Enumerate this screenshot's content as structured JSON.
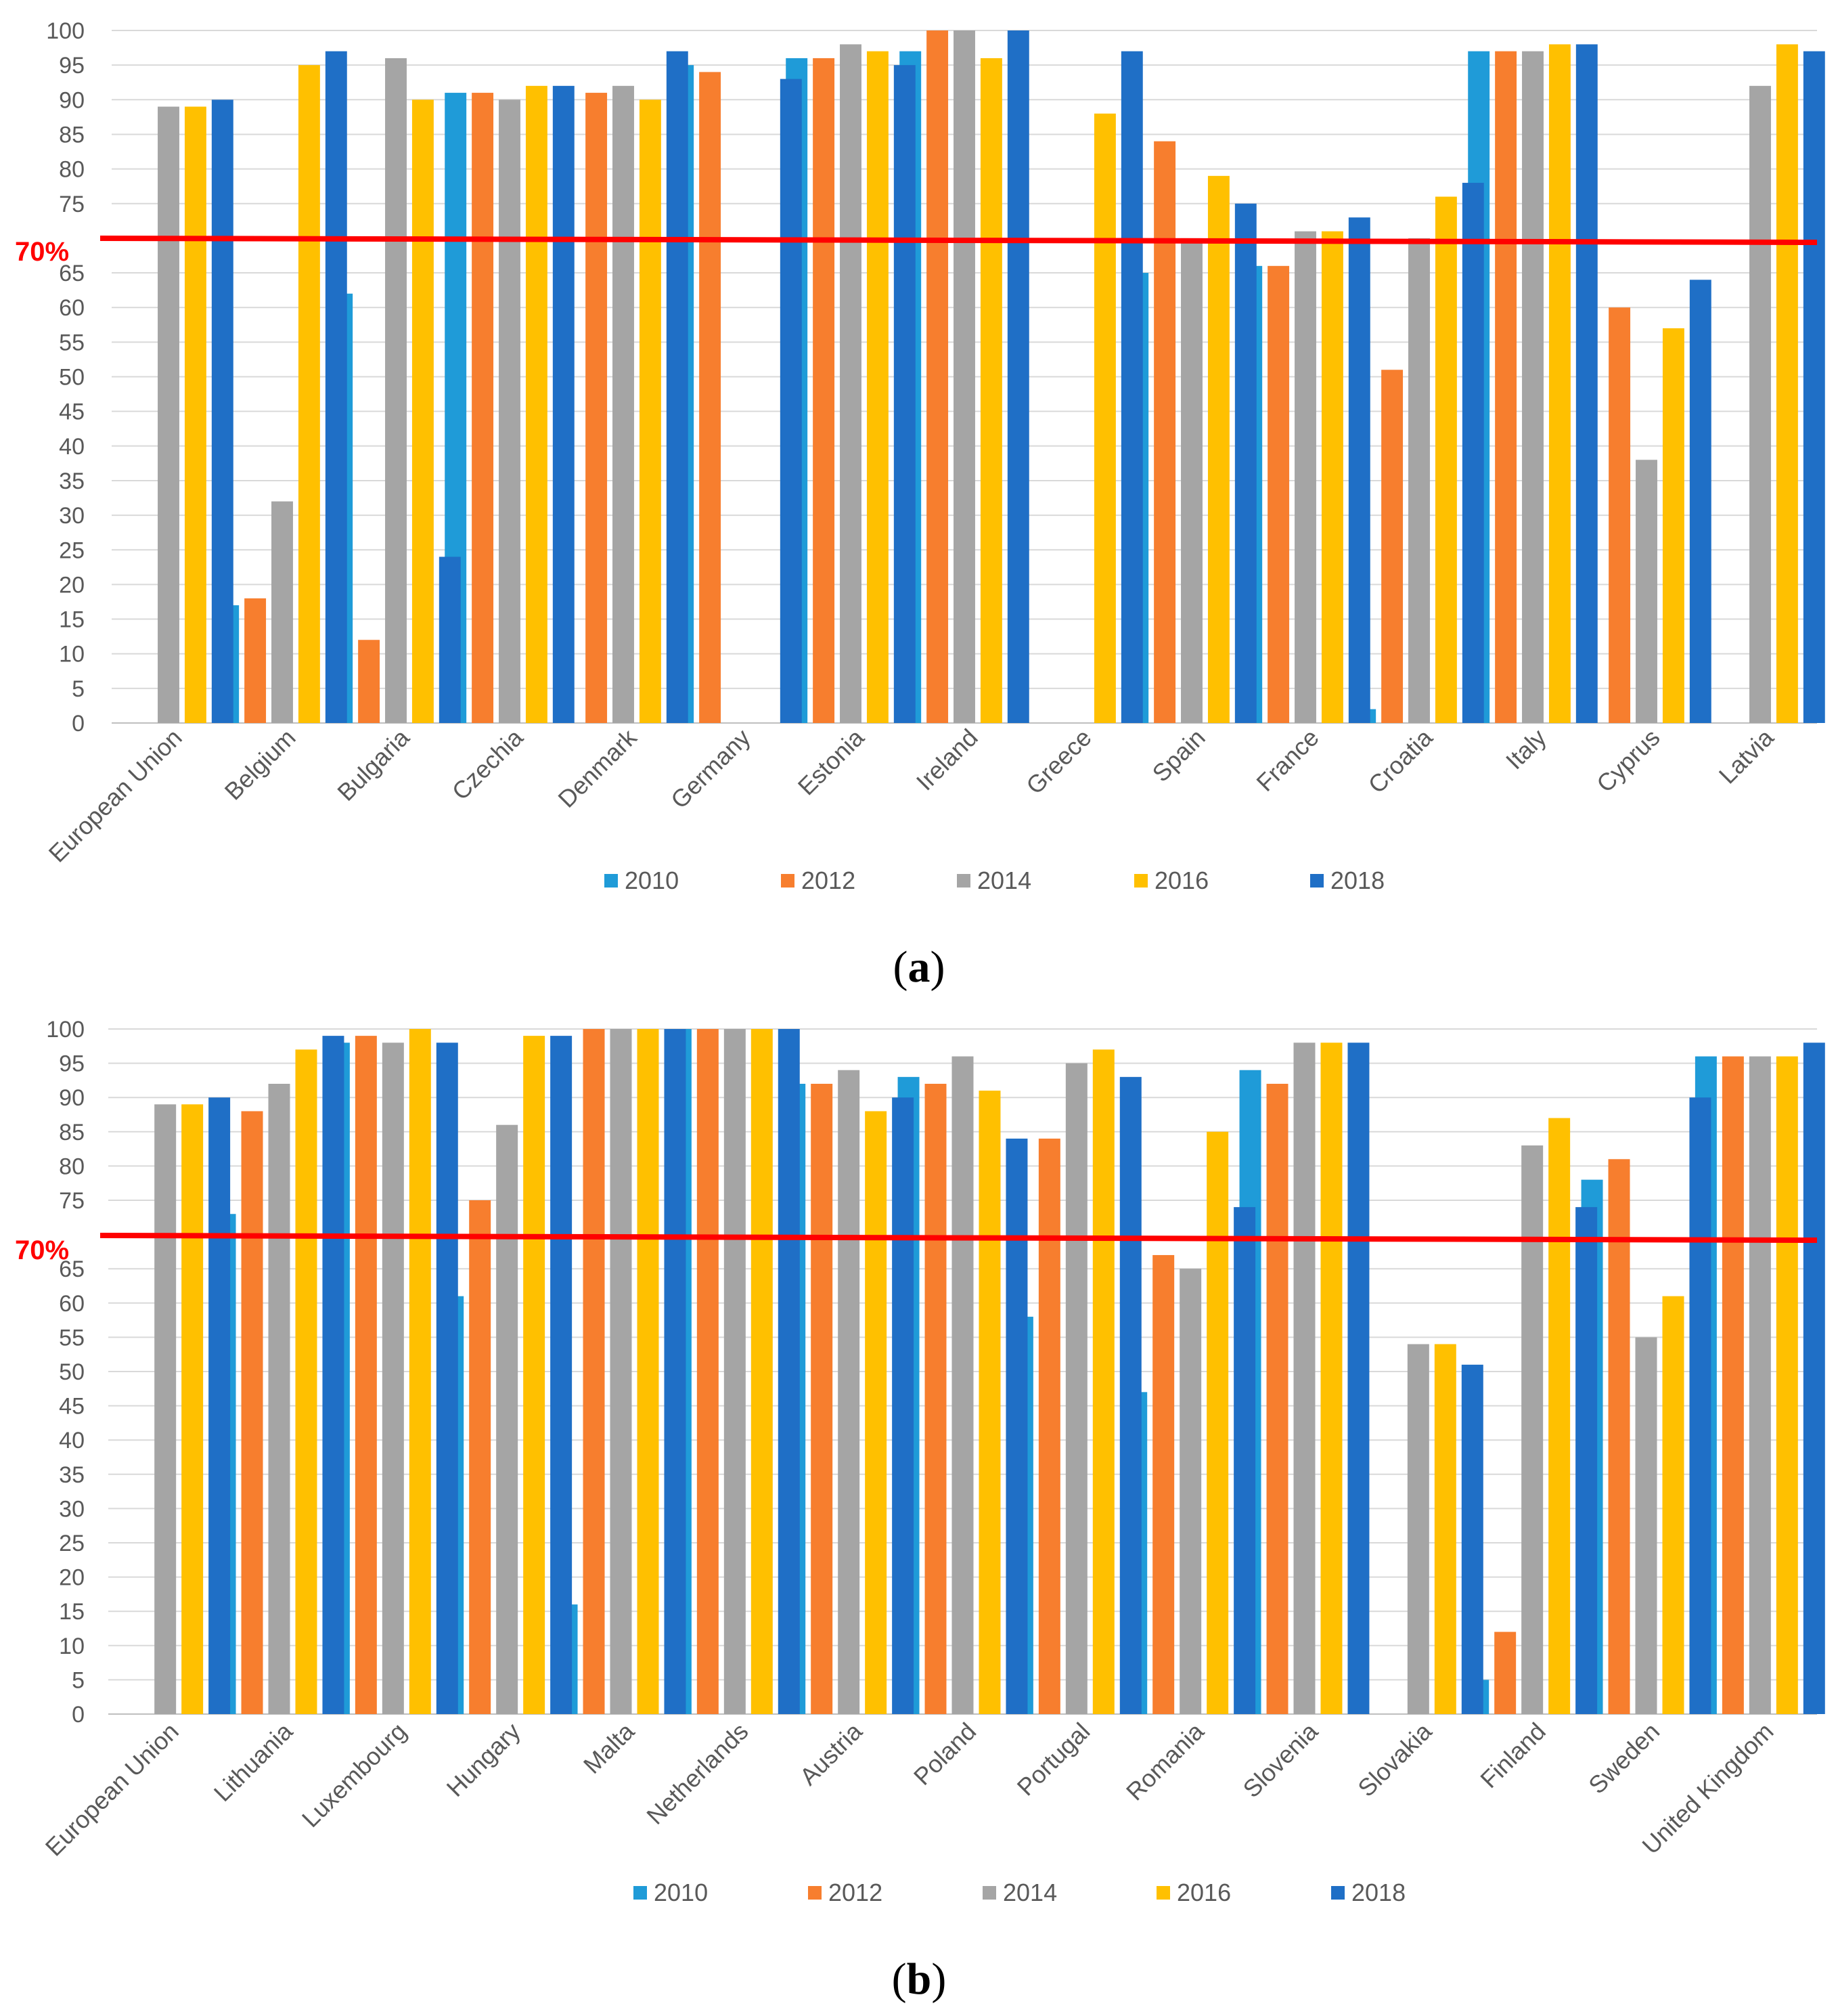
{
  "colors": {
    "2010": "#1f9bd8",
    "2012": "#f77e2e",
    "2014": "#a5a5a5",
    "2016": "#ffc000",
    "2018": "#1f6fc6",
    "threshold": "#ff0000",
    "grid": "#d9d9d9",
    "axis": "#bfbfbf"
  },
  "chart_data": [
    {
      "panel": "a",
      "type": "bar",
      "ylim": [
        0,
        100
      ],
      "yticks": [
        0,
        5,
        10,
        15,
        20,
        25,
        30,
        35,
        40,
        45,
        50,
        55,
        60,
        65,
        70,
        75,
        80,
        85,
        90,
        95,
        100
      ],
      "ytick_labels": [
        "0",
        "5",
        "10",
        "15",
        "20",
        "25",
        "30",
        "35",
        "40",
        "45",
        "50",
        "55",
        "60",
        "65",
        "70%",
        "75",
        "80",
        "85",
        "90",
        "95",
        "100"
      ],
      "threshold": {
        "value": 70,
        "label": "70%"
      },
      "categories": [
        "European Union",
        "Belgium",
        "Bulgaria",
        "Czechia",
        "Denmark",
        "Germany",
        "Estonia",
        "Ireland",
        "Greece",
        "Spain",
        "France",
        "Croatia",
        "Italy",
        "Cyprus",
        "Latvia"
      ],
      "series": [
        {
          "name": "2010",
          "values": [
            null,
            17,
            62,
            91,
            null,
            95,
            96,
            97,
            null,
            65,
            66,
            2,
            97,
            null,
            null
          ]
        },
        {
          "name": "2012",
          "values": [
            null,
            18,
            12,
            91,
            91,
            94,
            96,
            100,
            null,
            84,
            66,
            51,
            97,
            60,
            null
          ]
        },
        {
          "name": "2014",
          "values": [
            89,
            32,
            96,
            90,
            92,
            null,
            98,
            100,
            null,
            70,
            71,
            70,
            97,
            38,
            92
          ]
        },
        {
          "name": "2016",
          "values": [
            89,
            95,
            90,
            92,
            90,
            null,
            97,
            96,
            88,
            79,
            71,
            76,
            98,
            57,
            98
          ]
        },
        {
          "name": "2018",
          "values": [
            90,
            97,
            24,
            92,
            97,
            93,
            95,
            100,
            97,
            75,
            73,
            78,
            98,
            64,
            97
          ]
        }
      ],
      "legend": [
        "2010",
        "2012",
        "2014",
        "2016",
        "2018"
      ],
      "panel_label": {
        "open": "(",
        "letter": "a",
        "close": ")"
      }
    },
    {
      "panel": "b",
      "type": "bar",
      "ylim": [
        0,
        100
      ],
      "yticks": [
        0,
        5,
        10,
        15,
        20,
        25,
        30,
        35,
        40,
        45,
        50,
        55,
        60,
        65,
        70,
        75,
        80,
        85,
        90,
        95,
        100
      ],
      "ytick_labels": [
        "0",
        "5",
        "10",
        "15",
        "20",
        "25",
        "30",
        "35",
        "40",
        "45",
        "50",
        "55",
        "60",
        "65",
        "70%",
        "75",
        "80",
        "85",
        "90",
        "95",
        "100"
      ],
      "threshold": {
        "value": 70,
        "label": "70%"
      },
      "categories": [
        "European Union",
        "Lithuania",
        "Luxembourg",
        "Hungary",
        "Malta",
        "Netherlands",
        "Austria",
        "Poland",
        "Portugal",
        "Romania",
        "Slovenia",
        "Slovakia",
        "Finland",
        "Sweden",
        "United Kingdom"
      ],
      "series": [
        {
          "name": "2010",
          "values": [
            null,
            73,
            98,
            61,
            16,
            100,
            92,
            93,
            58,
            47,
            94,
            null,
            5,
            78,
            96
          ]
        },
        {
          "name": "2012",
          "values": [
            null,
            88,
            99,
            75,
            100,
            100,
            92,
            92,
            84,
            67,
            92,
            null,
            12,
            81,
            96
          ]
        },
        {
          "name": "2014",
          "values": [
            89,
            92,
            98,
            86,
            100,
            100,
            94,
            96,
            95,
            65,
            98,
            54,
            83,
            55,
            96
          ]
        },
        {
          "name": "2016",
          "values": [
            89,
            97,
            100,
            99,
            100,
            100,
            88,
            91,
            97,
            85,
            98,
            54,
            87,
            61,
            96
          ]
        },
        {
          "name": "2018",
          "values": [
            90,
            99,
            98,
            99,
            100,
            100,
            90,
            84,
            93,
            74,
            98,
            51,
            74,
            90,
            98
          ]
        }
      ],
      "legend": [
        "2010",
        "2012",
        "2014",
        "2016",
        "2018"
      ],
      "panel_label": {
        "open": "(",
        "letter": "b",
        "close": ")"
      }
    }
  ]
}
